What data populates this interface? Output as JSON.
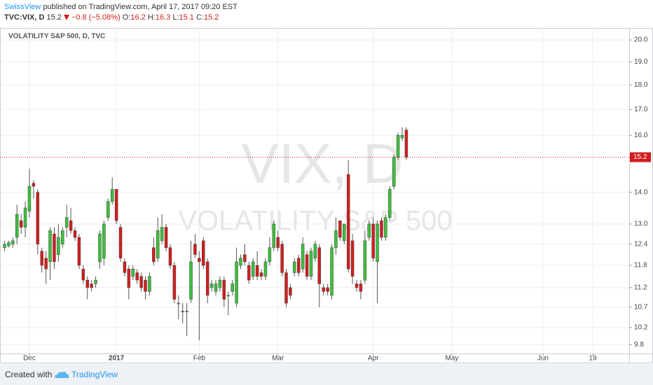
{
  "header": {
    "author": "SwissView",
    "published": "published on TradingView.com, April 17, 2017 09:20 EST",
    "symbol": "TVC:VIX, D",
    "last": "15.2",
    "change": "−0.8 (−5.08%)",
    "ohlc": [
      {
        "key": "O:",
        "value": "16.2"
      },
      {
        "key": "H:",
        "value": "16.3"
      },
      {
        "key": "L:",
        "value": "15.1"
      },
      {
        "key": "C:",
        "value": "15.2"
      }
    ]
  },
  "footer": {
    "created": "Created with",
    "brand": "TradingView"
  },
  "chart_data": {
    "type": "candlestick",
    "title": "VOLATILITY S&P 500, D, TVC",
    "watermark": [
      "VIX, D",
      "VOLATILITY S&P 500"
    ],
    "log_scale": true,
    "grid": true,
    "up_color": "#3dbf3d",
    "down_color": "#d21e1e",
    "last_price": 15.2,
    "xlim": [
      -1.1,
      150.8
    ],
    "xticks": [
      {
        "value": 6,
        "label": "Dec"
      },
      {
        "value": 27,
        "label": "2017"
      },
      {
        "value": 47,
        "label": "Feb"
      },
      {
        "value": 66,
        "label": "Mar"
      },
      {
        "value": 89,
        "label": "Apr"
      },
      {
        "value": 108,
        "label": "May"
      },
      {
        "value": 130,
        "label": "Jun"
      },
      {
        "value": 142,
        "label": "19"
      }
    ],
    "ylim": [
      9.6,
      20.4
    ],
    "yticks": [
      9.8,
      10.2,
      10.7,
      11.2,
      11.8,
      12.4,
      {
        "value": 13,
        "label": "13.0"
      },
      {
        "value": 14,
        "label": "14.0"
      },
      {
        "value": 16,
        "label": "16.0"
      },
      {
        "value": 17,
        "label": "17.0"
      },
      {
        "value": 18,
        "label": "18.0"
      },
      {
        "value": 19,
        "label": "19.0"
      },
      {
        "value": 20,
        "label": "20.0"
      }
    ],
    "open": [
      12.3,
      12.35,
      12.4,
      12.6,
      13.1,
      12.9,
      13.4,
      14.3,
      14.0,
      12.2,
      12.0,
      11.9,
      12.7,
      12.1,
      12.4,
      12.9,
      13.1,
      12.8,
      12.6,
      11.7,
      11.4,
      11.3,
      11.3,
      11.9,
      12.0,
      13.2,
      13.7,
      14.1,
      12.9,
      11.9,
      11.7,
      11.5,
      11.6,
      11.5,
      11.4,
      11.1,
      12.3,
      12.0,
      12.5,
      12.9,
      12.3,
      11.8,
      10.8,
      10.6,
      10.6,
      10.9,
      12.4,
      12.0,
      12.5,
      11.9,
      11.2,
      11.1,
      11.2,
      11.4,
      11.0,
      11.1,
      10.8,
      11.8,
      12.1,
      11.8,
      11.5,
      11.8,
      11.6,
      11.5,
      11.9,
      12.3,
      12.6,
      12.4,
      11.6,
      11.2,
      11.6,
      12.0,
      11.7,
      12.1,
      11.5,
      12.0,
      12.3,
      11.2,
      11.2,
      11.0,
      12.3,
      13.1,
      12.5,
      14.6,
      12.5,
      11.3,
      11.3,
      11.4,
      12.6,
      13.0,
      11.9,
      13.1,
      12.6,
      13.2,
      14.2,
      15.2,
      15.9,
      16.2
    ],
    "high": [
      12.5,
      12.5,
      12.6,
      13.6,
      13.3,
      13.7,
      14.8,
      14.4,
      14.1,
      12.3,
      12.2,
      12.9,
      12.9,
      13.0,
      12.9,
      13.6,
      13.5,
      12.9,
      12.7,
      11.8,
      11.5,
      11.4,
      11.5,
      12.8,
      13.1,
      13.8,
      14.5,
      14.1,
      13.0,
      12.0,
      11.8,
      11.8,
      11.7,
      11.6,
      11.5,
      11.6,
      12.6,
      13.2,
      13.3,
      13.0,
      12.4,
      11.9,
      11.0,
      10.8,
      10.8,
      12.5,
      12.7,
      12.2,
      12.6,
      12.0,
      11.4,
      11.4,
      11.5,
      11.5,
      11.1,
      11.4,
      12.3,
      12.1,
      12.4,
      11.9,
      12.0,
      12.2,
      11.7,
      12.0,
      12.6,
      13.1,
      12.8,
      12.5,
      11.7,
      11.3,
      12.0,
      12.1,
      12.6,
      12.2,
      12.3,
      12.5,
      12.4,
      11.3,
      11.3,
      12.4,
      13.2,
      13.1,
      13.0,
      15.1,
      12.7,
      11.4,
      11.4,
      12.8,
      13.1,
      13.2,
      13.1,
      13.2,
      13.3,
      14.2,
      15.3,
      16.1,
      16.3,
      16.3
    ],
    "low": [
      12.2,
      12.3,
      12.3,
      12.4,
      12.7,
      12.6,
      13.2,
      13.8,
      12.1,
      11.6,
      11.3,
      11.4,
      11.7,
      11.9,
      12.3,
      12.6,
      12.7,
      12.5,
      11.7,
      11.3,
      10.9,
      11.1,
      11.2,
      11.7,
      11.8,
      13.1,
      13.6,
      13.0,
      11.9,
      11.5,
      10.9,
      11.4,
      11.3,
      11.1,
      10.9,
      11.0,
      11.8,
      11.9,
      12.4,
      12.2,
      11.7,
      10.8,
      10.4,
      10.3,
      10.0,
      10.8,
      12.0,
      9.9,
      11.7,
      10.8,
      11.1,
      11.0,
      11.1,
      10.7,
      10.5,
      11.0,
      10.7,
      11.7,
      11.8,
      11.3,
      11.4,
      11.4,
      11.4,
      11.4,
      11.8,
      12.2,
      12.2,
      11.5,
      10.7,
      10.9,
      11.5,
      11.5,
      11.6,
      11.4,
      11.4,
      11.9,
      10.7,
      11.0,
      11.0,
      10.9,
      12.1,
      12.5,
      12.4,
      11.6,
      11.3,
      11.1,
      10.9,
      11.3,
      12.5,
      11.9,
      10.8,
      12.5,
      12.5,
      13.1,
      14.1,
      15.1,
      15.8,
      15.1
    ],
    "close": [
      12.4,
      12.45,
      12.5,
      13.3,
      12.9,
      13.5,
      14.2,
      14.2,
      12.4,
      11.8,
      11.7,
      12.8,
      11.9,
      12.6,
      12.8,
      13.2,
      12.8,
      12.6,
      11.8,
      11.4,
      11.2,
      11.2,
      11.4,
      12.7,
      13.0,
      13.7,
      14.1,
      13.1,
      12.0,
      11.6,
      11.2,
      11.7,
      11.4,
      11.2,
      11.1,
      11.5,
      11.9,
      12.8,
      12.9,
      12.3,
      11.8,
      10.9,
      10.8,
      10.6,
      10.6,
      11.9,
      12.1,
      11.9,
      11.8,
      11.0,
      11.3,
      11.3,
      11.4,
      10.9,
      11.0,
      11.3,
      11.9,
      12.0,
      11.9,
      11.4,
      11.9,
      11.5,
      11.5,
      11.9,
      12.3,
      13.0,
      12.3,
      11.6,
      10.8,
      11.0,
      11.9,
      11.6,
      12.4,
      11.5,
      12.2,
      12.4,
      11.3,
      11.1,
      11.1,
      12.3,
      12.8,
      12.6,
      13.0,
      11.7,
      11.5,
      11.2,
      11.1,
      12.5,
      13.0,
      12.0,
      13.0,
      12.6,
      13.2,
      14.1,
      15.2,
      16.0,
      16.0,
      15.2
    ]
  }
}
